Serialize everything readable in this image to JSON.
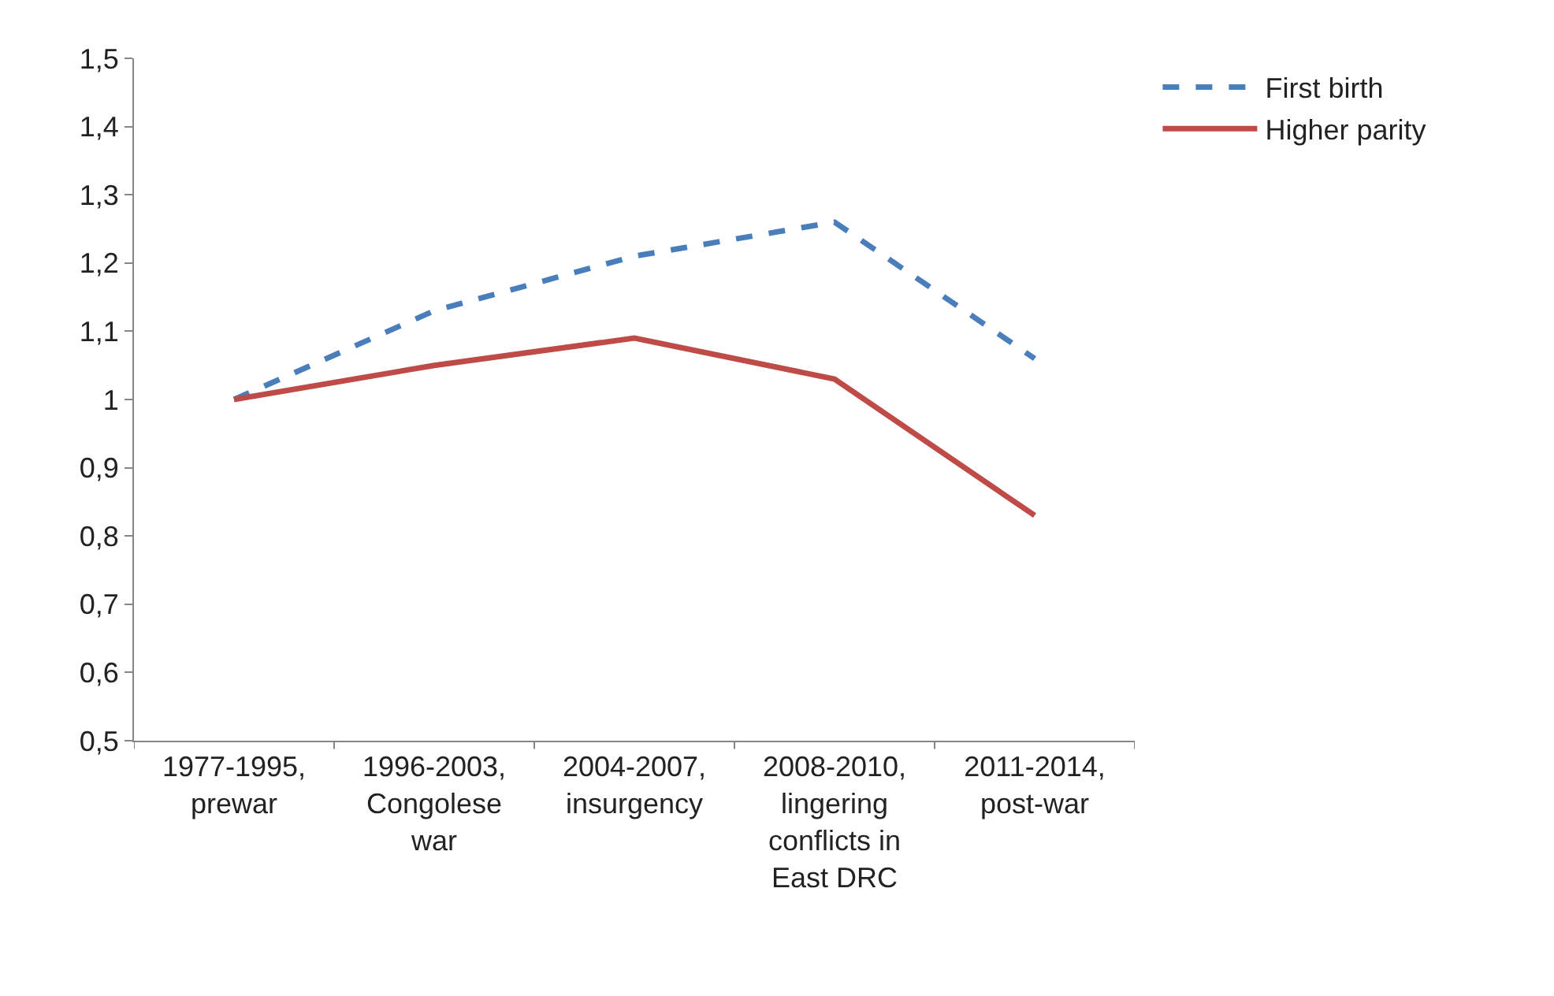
{
  "chart_data": {
    "type": "line",
    "categories": [
      "1977-1995, prewar",
      "1996-2003, Congolese war",
      "2004-2007, insurgency",
      "2008-2010, lingering conflicts in East DRC",
      "2011-2014, post-war"
    ],
    "series": [
      {
        "name": "First birth",
        "color": "#4a7ebb",
        "line_style": "dashed",
        "values": [
          1.0,
          1.13,
          1.21,
          1.26,
          1.06
        ]
      },
      {
        "name": "Higher parity",
        "color": "#be4b48",
        "line_style": "solid",
        "values": [
          1.0,
          1.05,
          1.09,
          1.03,
          0.83
        ]
      }
    ],
    "ylim": [
      0.5,
      1.5
    ],
    "yticks": [
      {
        "value": 0.5,
        "label": "0,5"
      },
      {
        "value": 0.6,
        "label": "0,6"
      },
      {
        "value": 0.7,
        "label": "0,7"
      },
      {
        "value": 0.8,
        "label": "0,8"
      },
      {
        "value": 0.9,
        "label": "0,9"
      },
      1,
      {
        "value": 1.1,
        "label": "1,1"
      },
      {
        "value": 1.2,
        "label": "1,2"
      },
      {
        "value": 1.3,
        "label": "1,3"
      },
      {
        "value": 1.4,
        "label": "1,4"
      },
      {
        "value": 1.5,
        "label": "1,5"
      }
    ],
    "legend": "top right",
    "marker": "none"
  }
}
